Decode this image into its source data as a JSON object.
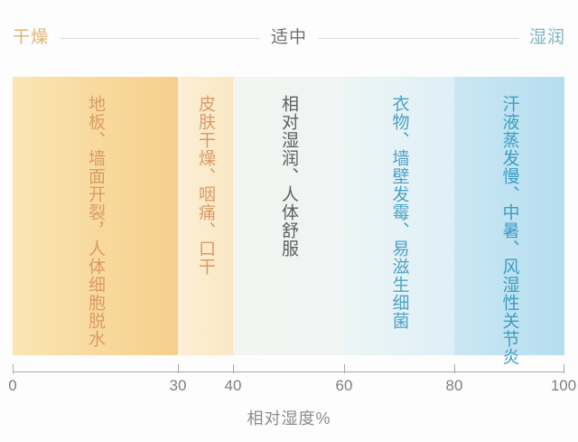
{
  "header": {
    "dry": "干燥",
    "dry_color": "#e3b173",
    "moderate": "适中",
    "moderate_color": "#6f7072",
    "humid": "湿润",
    "humid_color": "#7fb2c1",
    "line_color": "#dcdcdc"
  },
  "chart_data": {
    "type": "bar",
    "subtype": "humidity-zone-band-chart",
    "title": "",
    "xlabel": "相对湿度%",
    "ylabel": "",
    "xlim": [
      0,
      100
    ],
    "xticks": [
      "0",
      "30",
      "40",
      "60",
      "80",
      "100"
    ],
    "grid": false,
    "legend": "none",
    "header_categories": [
      "干燥",
      "适中",
      "湿润"
    ],
    "zones": [
      {
        "range": [
          0,
          30
        ],
        "category": "干燥",
        "label": "地板、墙面开裂，人体细胞脱水",
        "colors": [
          "#fae5b2",
          "#f6cf8b"
        ],
        "text_color": "#db9b64"
      },
      {
        "range": [
          30,
          40
        ],
        "category": "干燥",
        "label": "皮肤干燥、咽痛、口干",
        "colors": [
          "#fbefd6",
          "#fae8c3"
        ],
        "text_color": "#db9b64"
      },
      {
        "range": [
          40,
          60
        ],
        "category": "适中",
        "label": "相对湿润、人体舒服",
        "colors": [
          "#f3f5f2",
          "#f0f4f3"
        ],
        "text_color": "#5f6063"
      },
      {
        "range": [
          60,
          80
        ],
        "category": "湿润",
        "label": "衣物、墙壁发霉、易滋生细菌",
        "colors": [
          "#edf5f5",
          "#deeff6"
        ],
        "text_color": "#4aa3c8"
      },
      {
        "range": [
          80,
          100
        ],
        "category": "湿润",
        "label": "汗液蒸发慢、中暑、风湿性关节炎",
        "colors": [
          "#c9e7f3",
          "#b6deef"
        ],
        "text_color": "#3e9cc4"
      }
    ],
    "axis_color": "#a8a8a8",
    "tick_label_color": "#7e7e7e",
    "xlabel_color": "#8b8b8b"
  }
}
